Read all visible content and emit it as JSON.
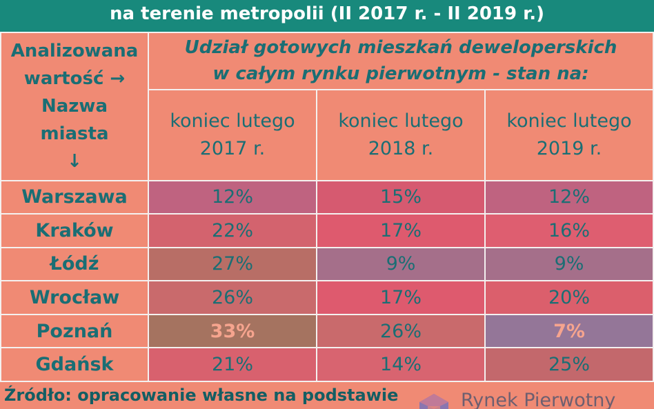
{
  "title": "na terenie metropolii (II 2017 r. - II 2019 r.)",
  "header": {
    "left": [
      "Analizowana",
      "wartość →",
      "Nazwa",
      "miasta",
      "↓"
    ],
    "main": [
      "Udział gotowych mieszkań deweloperskich",
      "w całym rynku pierwotnym - stan na:"
    ],
    "columns": [
      [
        "koniec lutego",
        "2017 r."
      ],
      [
        "koniec lutego",
        "2018 r."
      ],
      [
        "koniec lutego",
        "2019 r."
      ]
    ]
  },
  "rows": [
    {
      "city": "Warszawa",
      "values": [
        "12%",
        "15%",
        "12%"
      ]
    },
    {
      "city": "Kraków",
      "values": [
        "22%",
        "17%",
        "16%"
      ]
    },
    {
      "city": "Łódź",
      "values": [
        "27%",
        "9%",
        "9%"
      ]
    },
    {
      "city": "Wrocław",
      "values": [
        "26%",
        "17%",
        "20%"
      ]
    },
    {
      "city": "Poznań",
      "values": [
        "33%",
        "26%",
        "7%"
      ]
    },
    {
      "city": "Gdańsk",
      "values": [
        "21%",
        "14%",
        "25%"
      ]
    }
  ],
  "cell_colors": [
    [
      "#bf6380",
      "#d65a70",
      "#bf6380"
    ],
    [
      "#d3636e",
      "#de5a6e",
      "#de5e70"
    ],
    [
      "#b86e66",
      "#a56f8a",
      "#a56f8a"
    ],
    [
      "#c96a6c",
      "#de5a6e",
      "#db5f6c"
    ],
    [
      "#a57360",
      "#c96a6c",
      "#947698"
    ],
    [
      "#d8616e",
      "#d86470",
      "#c3686c"
    ]
  ],
  "highlight": [
    [
      4,
      0
    ],
    [
      4,
      2
    ]
  ],
  "footer": {
    "source": "Źródło: opracowanie własne na podstawie",
    "logo_text": "Rynek Pierwotny"
  },
  "chart_data": {
    "type": "table",
    "title": "na terenie metropolii (II 2017 r. - II 2019 r.)",
    "columns": [
      "koniec lutego 2017 r.",
      "koniec lutego 2018 r.",
      "koniec lutego 2019 r."
    ],
    "categories": [
      "Warszawa",
      "Kraków",
      "Łódź",
      "Wrocław",
      "Poznań",
      "Gdańsk"
    ],
    "series": [
      {
        "name": "koniec lutego 2017 r.",
        "values": [
          12,
          22,
          27,
          26,
          33,
          21
        ]
      },
      {
        "name": "koniec lutego 2018 r.",
        "values": [
          15,
          17,
          9,
          17,
          26,
          14
        ]
      },
      {
        "name": "koniec lutego 2019 r.",
        "values": [
          12,
          16,
          9,
          20,
          7,
          25
        ]
      }
    ],
    "unit": "%"
  }
}
